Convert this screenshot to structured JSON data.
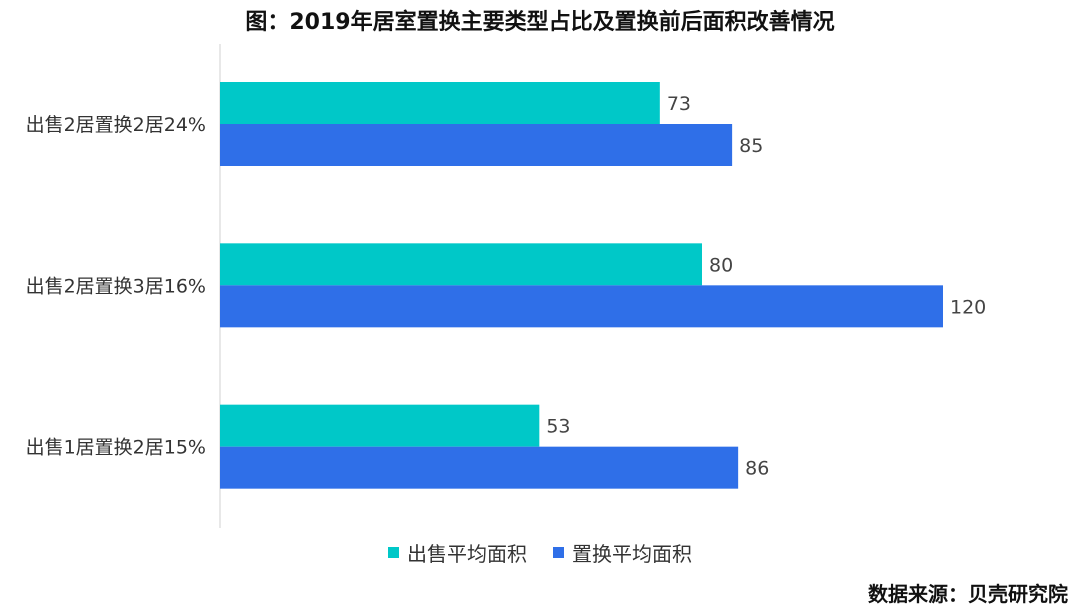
{
  "colors": {
    "series1": "#00C8C8",
    "series2": "#2F6FE8",
    "axis": "#d0d0d0"
  },
  "chart_data": {
    "type": "bar",
    "orientation": "horizontal",
    "title": "图：2019年居室置换主要类型占比及置换前后面积改善情况",
    "categories": [
      "出售2居置换2居24%",
      "出售2居置换3居16%",
      "出售1居置换2居15%"
    ],
    "series": [
      {
        "name": "出售平均面积",
        "values": [
          73,
          80,
          53
        ]
      },
      {
        "name": "置换平均面积",
        "values": [
          85,
          120,
          86
        ]
      }
    ],
    "xlim": [
      0,
      120
    ],
    "grid": false,
    "legend_position": "bottom",
    "data_labels": true
  },
  "source": "数据来源：贝壳研究院"
}
